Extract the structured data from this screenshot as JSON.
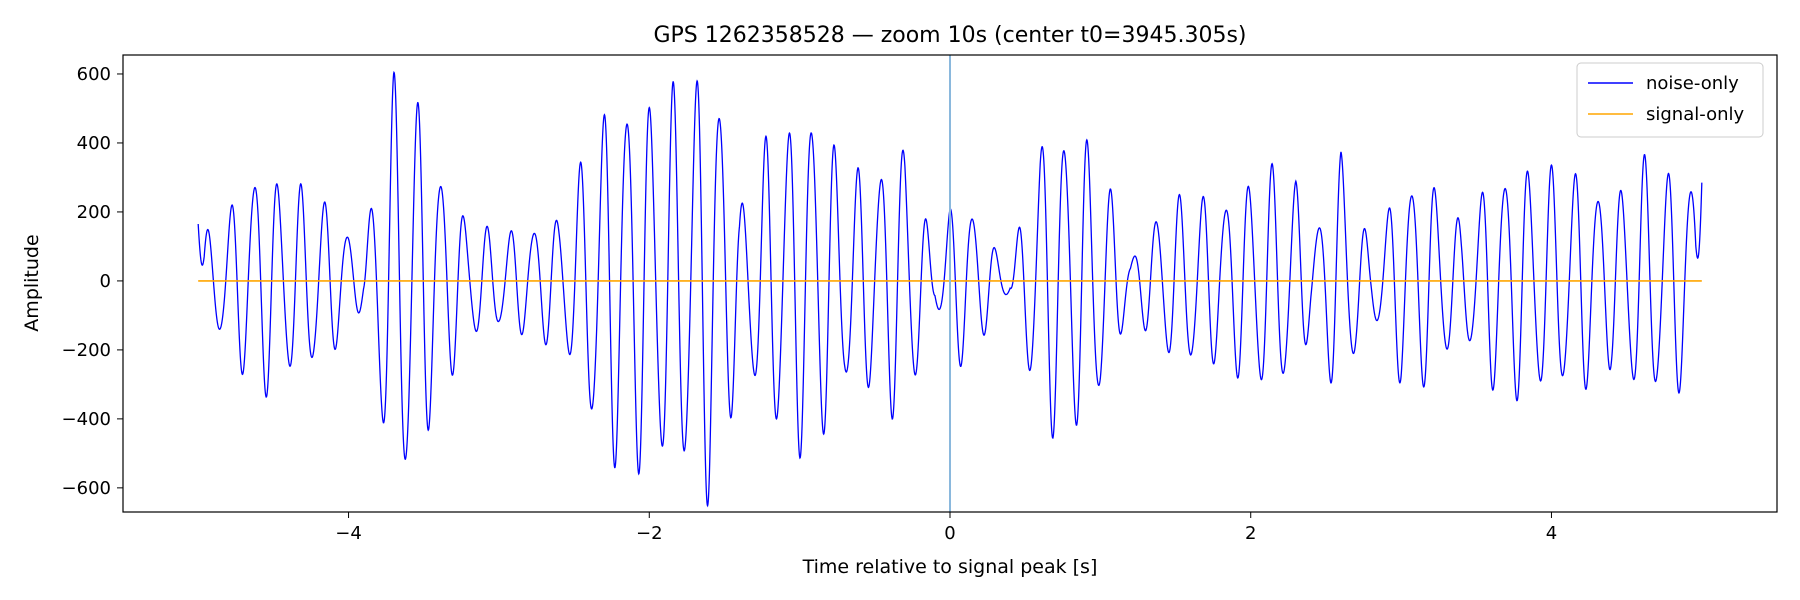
{
  "chart_data": {
    "type": "line",
    "title": "GPS 1262358528 — zoom 10s (center t0=3945.305s)",
    "xlabel": "Time relative to signal peak [s]",
    "ylabel": "Amplitude",
    "xlim": [
      -5.5,
      5.5
    ],
    "ylim": [
      -670,
      655
    ],
    "xticks": [
      -4,
      -2,
      0,
      2,
      4
    ],
    "xtick_labels": [
      "−4",
      "−2",
      "0",
      "2",
      "4"
    ],
    "yticks": [
      -600,
      -400,
      -200,
      0,
      200,
      400,
      600
    ],
    "ytick_labels": [
      "−600",
      "−400",
      "−200",
      "0",
      "200",
      "400",
      "600"
    ],
    "grid": false,
    "legend_position": "top-right",
    "vertical_marker": {
      "x": 0,
      "color": "#8ab8dd"
    },
    "series": [
      {
        "name": "noise-only",
        "color": "#0000ff",
        "x_range": [
          -5,
          5
        ],
        "x_step": 0.01,
        "envelope": [
          [
            -5.0,
            140
          ],
          [
            -4.9,
            130
          ],
          [
            -4.6,
            320
          ],
          [
            -4.4,
            260
          ],
          [
            -4.2,
            240
          ],
          [
            -4.0,
            140
          ],
          [
            -3.9,
            60
          ],
          [
            -3.8,
            380
          ],
          [
            -3.7,
            540
          ],
          [
            -3.6,
            580
          ],
          [
            -3.5,
            440
          ],
          [
            -3.4,
            320
          ],
          [
            -3.2,
            160
          ],
          [
            -3.0,
            130
          ],
          [
            -2.8,
            150
          ],
          [
            -2.6,
            180
          ],
          [
            -2.5,
            240
          ],
          [
            -2.4,
            400
          ],
          [
            -2.2,
            520
          ],
          [
            -2.0,
            500
          ],
          [
            -1.8,
            520
          ],
          [
            -1.6,
            600
          ],
          [
            -1.5,
            500
          ],
          [
            -1.4,
            200
          ],
          [
            -1.2,
            400
          ],
          [
            -1.0,
            460
          ],
          [
            -0.9,
            480
          ],
          [
            -0.7,
            300
          ],
          [
            -0.5,
            300
          ],
          [
            -0.3,
            400
          ],
          [
            -0.1,
            60
          ],
          [
            0.0,
            200
          ],
          [
            0.1,
            240
          ],
          [
            0.3,
            90
          ],
          [
            0.4,
            30
          ],
          [
            0.6,
            400
          ],
          [
            0.8,
            420
          ],
          [
            1.0,
            340
          ],
          [
            1.2,
            60
          ],
          [
            1.4,
            200
          ],
          [
            1.6,
            240
          ],
          [
            1.8,
            220
          ],
          [
            2.0,
            280
          ],
          [
            2.1,
            310
          ],
          [
            2.3,
            280
          ],
          [
            2.4,
            120
          ],
          [
            2.5,
            220
          ],
          [
            2.6,
            370
          ],
          [
            2.7,
            200
          ],
          [
            2.8,
            90
          ],
          [
            3.0,
            280
          ],
          [
            3.2,
            280
          ],
          [
            3.4,
            150
          ],
          [
            3.6,
            290
          ],
          [
            3.8,
            320
          ],
          [
            4.0,
            300
          ],
          [
            4.2,
            300
          ],
          [
            4.4,
            230
          ],
          [
            4.6,
            330
          ],
          [
            4.8,
            300
          ],
          [
            5.0,
            290
          ]
        ],
        "carrier_hz": 6.5,
        "start_value": 165,
        "end_value": 285
      },
      {
        "name": "signal-only",
        "color": "#ffa500",
        "x": [
          -5,
          5
        ],
        "values": [
          0,
          0
        ]
      }
    ]
  }
}
